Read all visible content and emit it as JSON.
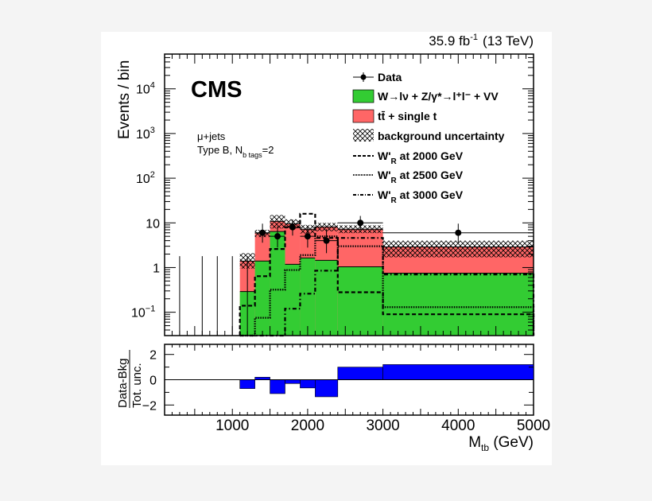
{
  "chart_data": {
    "type": "bar",
    "header_lumi": "35.9 fb",
    "header_lumi_sup": "-1",
    "header_energy": "(13 TeV)",
    "experiment": "CMS",
    "channel": "μ+jets",
    "category_prefix": "Type B, N",
    "category_sub": "b tags",
    "category_suffix": "=2",
    "xlabel_main": "M",
    "xlabel_sub": "tb",
    "xlabel_unit": " (GeV)",
    "ylabel": "Events / bin",
    "ratio_ylabel_num": "Data-Bkg",
    "ratio_ylabel_den": "Tot. unc.",
    "xlim": [
      100,
      5000
    ],
    "ylim": [
      0.03,
      60000
    ],
    "yscale": "log",
    "ratio_ylim": [
      -2.8,
      2.8
    ],
    "x_ticks": [
      "1000",
      "2000",
      "3000",
      "4000",
      "5000"
    ],
    "x_tick_values": [
      1000,
      2000,
      3000,
      4000,
      5000
    ],
    "y_ticks": [
      {
        "v": 0.1,
        "base": "10",
        "exp": "−1"
      },
      {
        "v": 1,
        "base": "1",
        "exp": ""
      },
      {
        "v": 10,
        "base": "10",
        "exp": ""
      },
      {
        "v": 100,
        "base": "10",
        "exp": "2"
      },
      {
        "v": 1000,
        "base": "10",
        "exp": "3"
      },
      {
        "v": 10000,
        "base": "10",
        "exp": "4"
      }
    ],
    "ratio_y_ticks": [
      "2",
      "0",
      "−2"
    ],
    "ratio_y_tick_values": [
      2,
      0,
      -2
    ],
    "bin_edges": [
      1100,
      1300,
      1500,
      1700,
      1900,
      2100,
      2400,
      3000,
      5000
    ],
    "stack": [
      {
        "name": "W→lν + Z/γ*→l⁺l⁻ + VV",
        "color": "#33cc33",
        "values": [
          0.29,
          1.4,
          6.4,
          1.18,
          1.64,
          1.45,
          1.04,
          0.75
        ]
      },
      {
        "name": "tt̄ + single t",
        "color": "#ff6666",
        "values_cumulative": [
          1.39,
          5.9,
          10.8,
          9.5,
          7.2,
          8.1,
          7.2,
          2.9
        ]
      }
    ],
    "bkg_uncertainty": {
      "name": "background uncertainty",
      "low": [
        0.95,
        4.8,
        7.5,
        7.5,
        5.8,
        6.5,
        5.9,
        1.7
      ],
      "high": [
        2.1,
        7.0,
        15.0,
        12.0,
        9.0,
        10.0,
        8.8,
        4.0
      ]
    },
    "data": {
      "name": "Data",
      "points": [
        {
          "x": 300,
          "xlo": 300,
          "xhi": 300,
          "y": 0,
          "yerr_hi": 1.8
        },
        {
          "x": 600,
          "xlo": 600,
          "xhi": 600,
          "y": 0,
          "yerr_hi": 1.8
        },
        {
          "x": 800,
          "xlo": 800,
          "xhi": 800,
          "y": 0,
          "yerr_hi": 1.8
        },
        {
          "x": 1000,
          "xlo": 1000,
          "xhi": 1000,
          "y": 0,
          "yerr_hi": 1.8
        },
        {
          "x": 1200,
          "xlo": 1200,
          "xhi": 1200,
          "y": 0,
          "yerr_hi": 1.8
        },
        {
          "x": 1400,
          "xlo": 1300,
          "xhi": 1500,
          "y": 6,
          "yerr_lo": 2.4,
          "yerr_hi": 3.6
        },
        {
          "x": 1600,
          "xlo": 1500,
          "xhi": 1700,
          "y": 5,
          "yerr_lo": 2.2,
          "yerr_hi": 3.4
        },
        {
          "x": 1800,
          "xlo": 1700,
          "xhi": 1900,
          "y": 8,
          "yerr_lo": 2.8,
          "yerr_hi": 3.9
        },
        {
          "x": 2000,
          "xlo": 1900,
          "xhi": 2100,
          "y": 5,
          "yerr_lo": 2.2,
          "yerr_hi": 3.4
        },
        {
          "x": 2250,
          "xlo": 2100,
          "xhi": 2400,
          "y": 4,
          "yerr_lo": 1.9,
          "yerr_hi": 3.2
        },
        {
          "x": 2700,
          "xlo": 2400,
          "xhi": 3000,
          "y": 10,
          "yerr_lo": 3.1,
          "yerr_hi": 4.3
        },
        {
          "x": 4000,
          "xlo": 3000,
          "xhi": 5000,
          "y": 6,
          "yerr_lo": 2.4,
          "yerr_hi": 3.6
        }
      ]
    },
    "signals": [
      {
        "name_main": "W'",
        "name_sub": "R",
        "name_rest": " at 2000 GeV",
        "style": "dashed",
        "values": [
          0.14,
          0.64,
          2.6,
          8.0,
          16.0,
          4.6,
          0.28,
          0.09
        ]
      },
      {
        "name_main": "W'",
        "name_sub": "R",
        "name_rest": " at 2500 GeV",
        "style": "dotted",
        "values": [
          0.03,
          0.075,
          0.32,
          0.88,
          1.9,
          5.0,
          3.0,
          0.13
        ]
      },
      {
        "name_main": "W'",
        "name_sub": "R",
        "name_rest": " at 3000 GeV",
        "style": "dashdot",
        "values": [
          0.03,
          0.03,
          0.03,
          0.12,
          0.26,
          0.85,
          4.6,
          0.7
        ]
      }
    ],
    "ratio": [
      -0.7,
      0.2,
      -1.1,
      -0.3,
      -0.65,
      -1.35,
      1.0,
      1.2
    ],
    "ratio_color": "#0000ff",
    "legend_placement": "top-right"
  }
}
